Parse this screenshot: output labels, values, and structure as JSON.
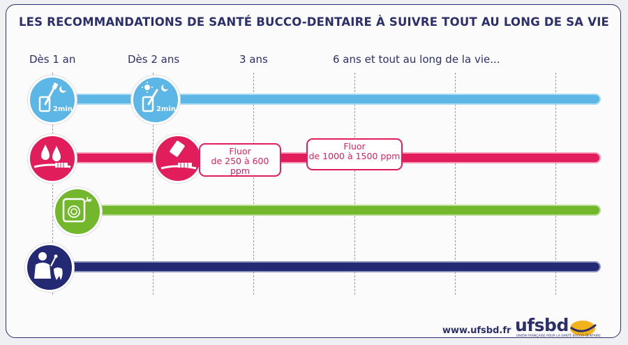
{
  "title": "LES RECOMMANDATIONS DE SANTÉ BUCCO-DENTAIRE À SUIVRE TOUT AU LONG DE SA VIE",
  "ages": [
    "Dès 1 an",
    "Dès 2 ans",
    "3 ans",
    "6 ans et tout au long de la vie..."
  ],
  "rows": {
    "brushing": {
      "timer_label": "2min",
      "timer_label_2": "2min",
      "color": "#5cb6e6"
    },
    "fluoride": {
      "color": "#e21d5c",
      "box1": {
        "line1": "Fluor",
        "line2": "de 250 à 600 ppm"
      },
      "box2": {
        "line1": "Fluor",
        "line2": "de 1000 à 1500 ppm"
      }
    },
    "floss": {
      "color": "#73b72d"
    },
    "dentist": {
      "color": "#232a73"
    }
  },
  "footer": {
    "website": "www.ufsbd.fr",
    "logo": "ufsbd",
    "logo_tagline": "UNION FRANÇAISE POUR LA SANTÉ BUCCO-DENTAIRE"
  }
}
